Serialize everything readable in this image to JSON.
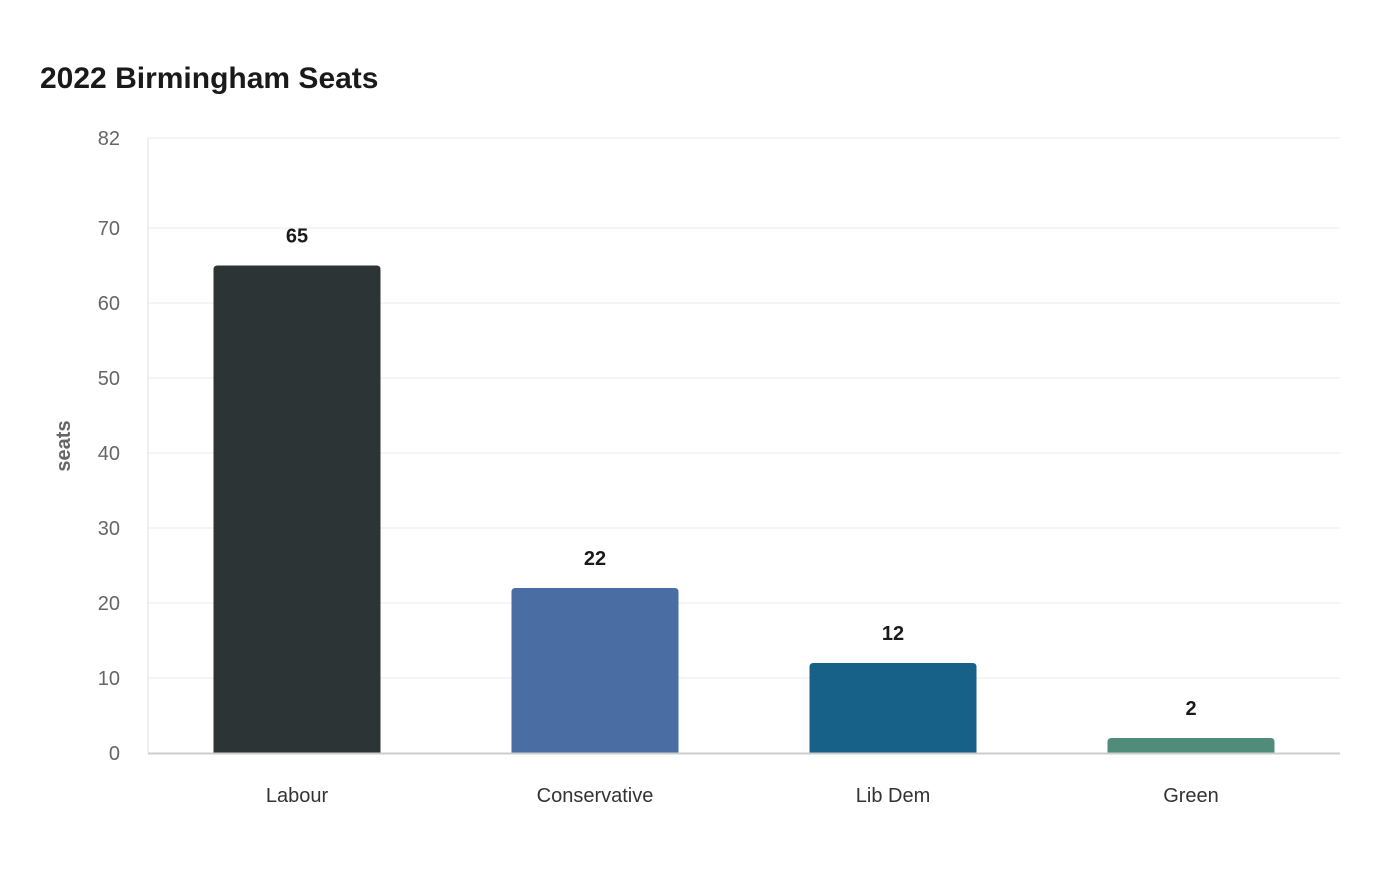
{
  "chart_data": {
    "type": "bar",
    "title": "2022 Birmingham Seats",
    "xlabel": "",
    "ylabel": "seats",
    "categories": [
      "Labour",
      "Conservative",
      "Lib Dem",
      "Green"
    ],
    "values": [
      65,
      22,
      12,
      2
    ],
    "colors": [
      "#2d3436",
      "#4a6da3",
      "#176087",
      "#4f8c79"
    ],
    "ylim": [
      0,
      82
    ],
    "yticks": [
      0,
      10,
      20,
      30,
      40,
      50,
      60,
      70,
      82
    ],
    "grid": true,
    "legend": "none",
    "data_labels": true
  }
}
